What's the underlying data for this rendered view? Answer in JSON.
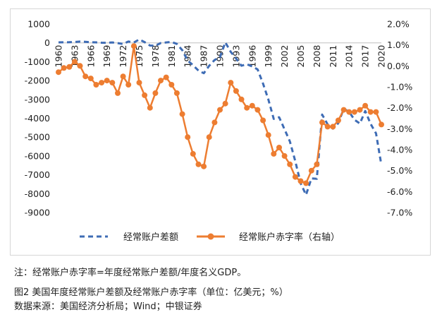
{
  "chart_data": {
    "type": "line",
    "x": [
      1960,
      1961,
      1962,
      1963,
      1964,
      1965,
      1966,
      1967,
      1968,
      1969,
      1970,
      1971,
      1972,
      1973,
      1974,
      1975,
      1976,
      1977,
      1978,
      1979,
      1980,
      1981,
      1982,
      1983,
      1984,
      1985,
      1986,
      1987,
      1988,
      1989,
      1990,
      1991,
      1992,
      1993,
      1994,
      1995,
      1996,
      1997,
      1998,
      1999,
      2000,
      2001,
      2002,
      2003,
      2004,
      2005,
      2006,
      2007,
      2008,
      2009,
      2010,
      2011,
      2012,
      2013,
      2014,
      2015,
      2016,
      2017,
      2018,
      2019,
      2020
    ],
    "x_tick_labels": [
      "1960",
      "1963",
      "1966",
      "1969",
      "1972",
      "1975",
      "1978",
      "1981",
      "1984",
      "1987",
      "1990",
      "1993",
      "1996",
      "1999",
      "2002",
      "2005",
      "2008",
      "2011",
      "2014",
      "2017",
      "2020"
    ],
    "y_left": {
      "ticks": [
        "1000",
        "0",
        "-1000",
        "-2000",
        "-3000",
        "-4000",
        "-5000",
        "-6000",
        "-7000",
        "-8000",
        "-9000"
      ],
      "range": [
        -9000,
        1000
      ]
    },
    "y_right": {
      "ticks": [
        "2.0%",
        "1.0%",
        "0.0%",
        "-1.0%",
        "-2.0%",
        "-3.0%",
        "-4.0%",
        "-5.0%",
        "-6.0%",
        "-7.0%"
      ],
      "range": [
        -7.0,
        2.0
      ]
    },
    "series": [
      {
        "name": "经常账户差额",
        "axis": "left",
        "style": "dashed",
        "color": "#3e6cb5",
        "values": [
          28,
          30,
          34,
          44,
          68,
          54,
          32,
          26,
          6,
          4,
          23,
          -14,
          -58,
          71,
          20,
          181,
          43,
          -144,
          -150,
          -11,
          24,
          50,
          -55,
          -388,
          -940,
          -1185,
          -1472,
          -1609,
          -1216,
          -911,
          -766,
          27,
          -475,
          -826,
          -1212,
          -1135,
          -1249,
          -1407,
          -2157,
          -3007,
          -4032,
          -3948,
          -4586,
          -5227,
          -6282,
          -7452,
          -8063,
          -7192,
          -7214,
          -3807,
          -4321,
          -4550,
          -4261,
          -3493,
          -3657,
          -4080,
          -4280,
          -3616,
          -4297,
          -4803,
          -6474
        ]
      },
      {
        "name": "经常账户赤字率（右轴）",
        "axis": "right",
        "style": "solid",
        "color": "#ed7d31",
        "values": [
          -0.3,
          -0.1,
          -0.05,
          0.2,
          0.0,
          -0.5,
          -0.6,
          -0.9,
          -0.8,
          -0.7,
          -0.8,
          -1.3,
          -0.5,
          -0.9,
          0.95,
          -0.8,
          -1.4,
          -2.0,
          -1.3,
          -0.7,
          -0.55,
          -0.9,
          -1.3,
          -2.3,
          -3.4,
          -4.2,
          -4.7,
          -4.8,
          -3.4,
          -2.7,
          -2.1,
          -1.8,
          -0.8,
          -1.2,
          -1.6,
          -2.0,
          -1.9,
          -2.1,
          -2.6,
          -3.3,
          -4.2,
          -3.9,
          -4.3,
          -4.7,
          -5.3,
          -5.5,
          -5.6,
          -5.0,
          -4.7,
          -2.7,
          -2.9,
          -2.9,
          -2.6,
          -2.1,
          -2.2,
          -2.2,
          -2.1,
          -1.9,
          -2.2,
          -2.2,
          -2.8
        ]
      }
    ],
    "legend": "bottom"
  },
  "notes": {
    "footnote": "注：经常账户赤字率=年度经常账户差额/年度名义GDP。",
    "caption": "图2  美国年度经常账户差额及经常账户赤字率（单位：亿美元；%）",
    "source": "数据来源：美国经济分析局；Wind；中银证券"
  }
}
